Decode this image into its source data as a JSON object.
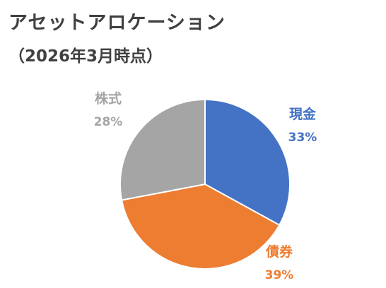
{
  "chart_data": {
    "type": "pie",
    "title": "アセットアロケーション",
    "subtitle": "（2026年3月時点）",
    "slices": [
      {
        "label": "現金",
        "value": 33,
        "value_label": "33%",
        "color": "#4472C4"
      },
      {
        "label": "債券",
        "value": 39,
        "value_label": "39%",
        "color": "#ED7D31"
      },
      {
        "label": "株式",
        "value": 28,
        "value_label": "28%",
        "color": "#A5A5A5"
      }
    ]
  }
}
